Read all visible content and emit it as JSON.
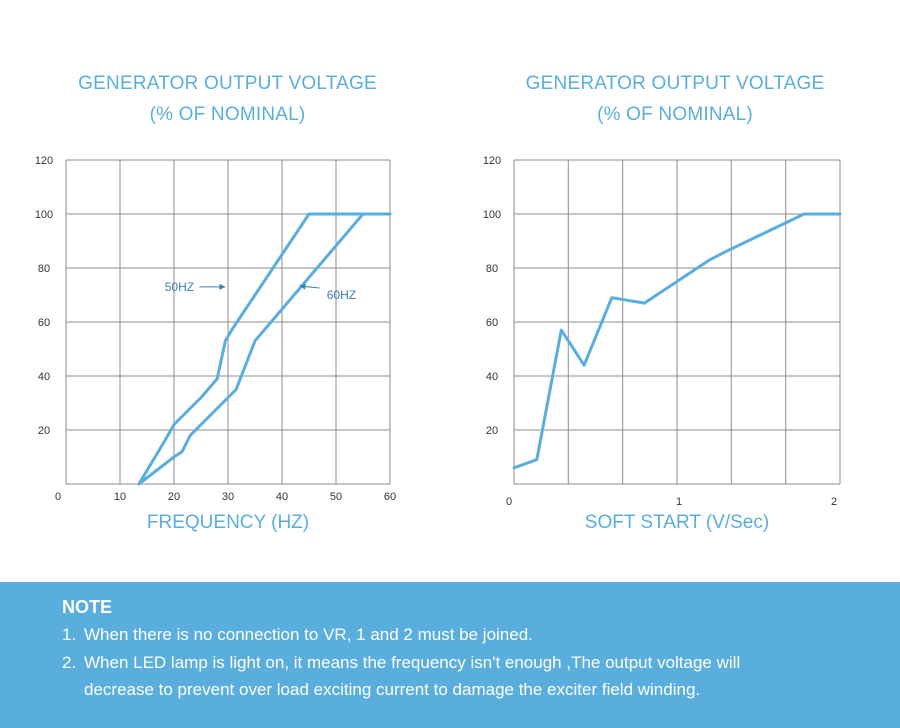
{
  "chart_data": [
    {
      "type": "line",
      "title": [
        "GENERATOR OUTPUT VOLTAGE",
        "(% OF NOMINAL)"
      ],
      "xlabel": "FREQUENCY (HZ)",
      "ylabel": "",
      "xlim": [
        0,
        60
      ],
      "ylim": [
        0,
        120
      ],
      "x_ticks": [
        "0",
        "10",
        "20",
        "30",
        "40",
        "50",
        "60"
      ],
      "y_ticks": [
        "20",
        "40",
        "60",
        "80",
        "100",
        "120"
      ],
      "grid": true,
      "series": [
        {
          "name": "50HZ",
          "points": [
            [
              13.5,
              0
            ],
            [
              18,
              15
            ],
            [
              20,
              22
            ],
            [
              25,
              32
            ],
            [
              28,
              39
            ],
            [
              29.5,
              53
            ],
            [
              31,
              58
            ],
            [
              45,
              100
            ],
            [
              60,
              100
            ]
          ]
        },
        {
          "name": "60HZ",
          "points": [
            [
              13.5,
              0
            ],
            [
              20,
              10
            ],
            [
              21.5,
              12
            ],
            [
              23,
              18
            ],
            [
              31.5,
              35
            ],
            [
              35,
              53
            ],
            [
              55,
              100
            ],
            [
              60,
              100
            ]
          ]
        }
      ],
      "annotations": [
        {
          "text": "50HZ",
          "x": 21,
          "y": 73
        },
        {
          "text": "60HZ",
          "x": 51,
          "y": 70
        }
      ]
    },
    {
      "type": "line",
      "title": [
        "GENERATOR OUTPUT VOLTAGE",
        "(% OF NOMINAL)"
      ],
      "xlabel": "SOFT START (V/Sec)",
      "ylabel": "",
      "xlim": [
        0,
        2
      ],
      "ylim": [
        0,
        120
      ],
      "x_ticks": [
        "0",
        "1",
        "2"
      ],
      "y_ticks": [
        "20",
        "40",
        "60",
        "80",
        "100",
        "120"
      ],
      "grid": true,
      "series": [
        {
          "name": "",
          "points": [
            [
              0,
              6
            ],
            [
              0.14,
              9
            ],
            [
              0.29,
              57
            ],
            [
              0.43,
              44
            ],
            [
              0.6,
              69
            ],
            [
              0.8,
              67
            ],
            [
              1.2,
              83
            ],
            [
              1.33,
              87
            ],
            [
              1.78,
              100
            ],
            [
              2,
              100
            ]
          ]
        }
      ]
    }
  ],
  "note": {
    "title": "NOTE",
    "items": [
      {
        "num": "1.",
        "text": "When there is no connection to VR, 1 and 2 must be joined."
      },
      {
        "num": "2.",
        "text": "When LED lamp is light on, it means the frequency isn't enough ,The output voltage will"
      }
    ],
    "continuation": "decrease to prevent over load exciting current to damage the exciter field winding."
  },
  "colors": {
    "line": "#5aaedd",
    "grid": "#8c8c8c",
    "note_bg": "#5aaedd"
  }
}
